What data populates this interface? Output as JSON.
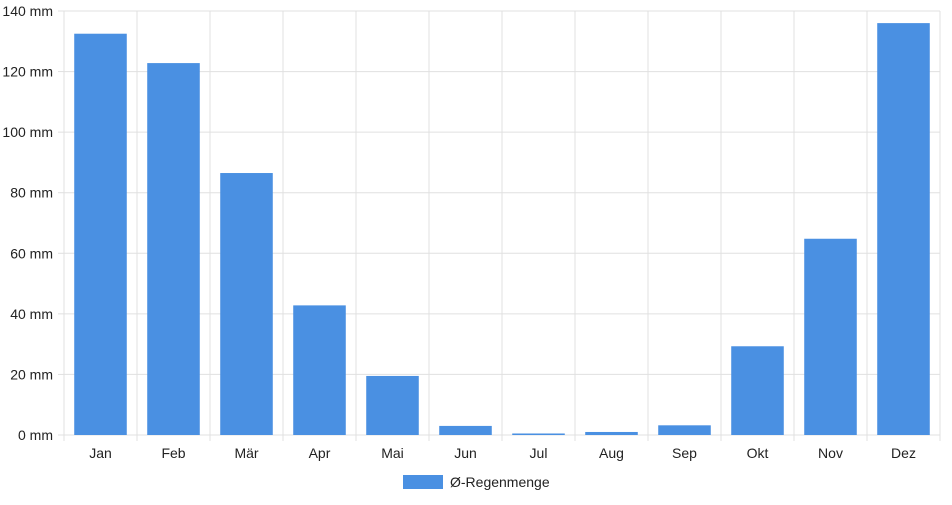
{
  "chart_data": {
    "type": "bar",
    "categories": [
      "Jan",
      "Feb",
      "Mär",
      "Apr",
      "Mai",
      "Jun",
      "Jul",
      "Aug",
      "Sep",
      "Okt",
      "Nov",
      "Dez"
    ],
    "series": [
      {
        "name": "Ø-Regenmenge",
        "values": [
          132.5,
          122.8,
          86.5,
          42.8,
          19.5,
          3.0,
          0.5,
          1.0,
          3.2,
          29.3,
          64.8,
          136.0
        ]
      }
    ],
    "ylim": [
      0,
      140
    ],
    "yticks": [
      0,
      20,
      40,
      60,
      80,
      100,
      120,
      140
    ],
    "yunit": "mm",
    "grid": true,
    "legend_position": "bottom-center",
    "bar_color": "#4a90e2",
    "grid_color": "#e0e0e0"
  }
}
